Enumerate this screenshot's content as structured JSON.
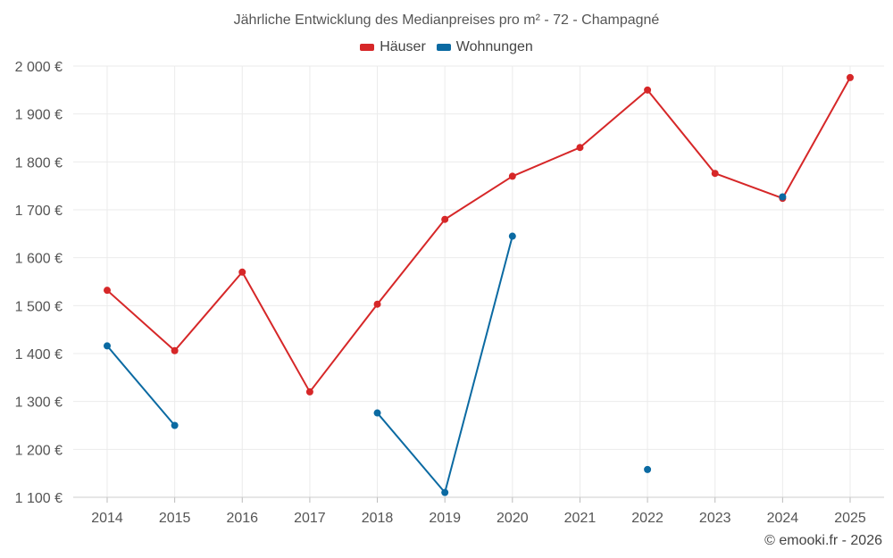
{
  "chart_data": {
    "type": "line",
    "title": "Jährliche Entwicklung des Medianpreises pro m² - 72 - Champagné",
    "xlabel": "",
    "ylabel": "",
    "categories": [
      "2014",
      "2015",
      "2016",
      "2017",
      "2018",
      "2019",
      "2020",
      "2021",
      "2022",
      "2023",
      "2024",
      "2025"
    ],
    "ylim": [
      1100,
      2000
    ],
    "yticks": [
      1100,
      1200,
      1300,
      1400,
      1500,
      1600,
      1700,
      1800,
      1900,
      2000
    ],
    "ytick_labels": [
      "1 100 €",
      "1 200 €",
      "1 300 €",
      "1 400 €",
      "1 500 €",
      "1 600 €",
      "1 700 €",
      "1 800 €",
      "1 900 €",
      "2 000 €"
    ],
    "grid": true,
    "legend_position": "top-center",
    "series": [
      {
        "name": "Häuser",
        "color": "#d62728",
        "values": [
          1532,
          1406,
          1570,
          1320,
          1503,
          1680,
          1770,
          1830,
          1950,
          1776,
          1724,
          1976
        ]
      },
      {
        "name": "Wohnungen",
        "color": "#0b6aa2",
        "values": [
          1416,
          1250,
          null,
          null,
          1276,
          1110,
          1645,
          null,
          1158,
          null,
          1727,
          null
        ]
      }
    ]
  },
  "footer": {
    "copyright": "© emooki.fr - 2026"
  }
}
